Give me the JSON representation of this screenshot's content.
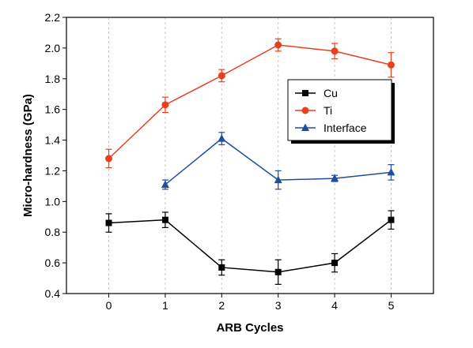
{
  "chart_data": {
    "type": "line",
    "xlabel": "ARB Cycles",
    "ylabel": "Micro-hardness (GPa)",
    "xlim": [
      -0.75,
      5.75
    ],
    "ylim": [
      0.4,
      2.2
    ],
    "xticks": [
      0,
      1,
      2,
      3,
      4,
      5
    ],
    "yticks": [
      0.4,
      0.6,
      0.8,
      1.0,
      1.2,
      1.4,
      1.6,
      1.8,
      2.0,
      2.2
    ],
    "xtick_labels": [
      "0",
      "1",
      "2",
      "3",
      "4",
      "5"
    ],
    "ytick_labels": [
      "0.4",
      "0.6",
      "0.8",
      "1.0",
      "1.2",
      "1.4",
      "1.6",
      "1.8",
      "2.0",
      "2.2"
    ],
    "grid": "vertical-dashed",
    "legend_position": "top-right",
    "series": [
      {
        "name": "Cu",
        "color": "#000000",
        "marker": "square",
        "x": [
          0,
          1,
          2,
          3,
          4,
          5
        ],
        "y": [
          0.86,
          0.88,
          0.57,
          0.54,
          0.6,
          0.88
        ],
        "err": [
          0.06,
          0.05,
          0.05,
          0.08,
          0.06,
          0.06
        ]
      },
      {
        "name": "Ti",
        "color": "#e8401c",
        "marker": "circle",
        "x": [
          0,
          1,
          2,
          3,
          4,
          5
        ],
        "y": [
          1.28,
          1.63,
          1.82,
          2.02,
          1.98,
          1.89
        ],
        "err": [
          0.06,
          0.05,
          0.04,
          0.04,
          0.05,
          0.08
        ]
      },
      {
        "name": "Interface",
        "color": "#1f4e9e",
        "marker": "triangle",
        "x": [
          1,
          2,
          3,
          4,
          5
        ],
        "y": [
          1.11,
          1.41,
          1.14,
          1.15,
          1.19
        ],
        "err": [
          0.03,
          0.04,
          0.06,
          0.02,
          0.05
        ]
      }
    ]
  }
}
